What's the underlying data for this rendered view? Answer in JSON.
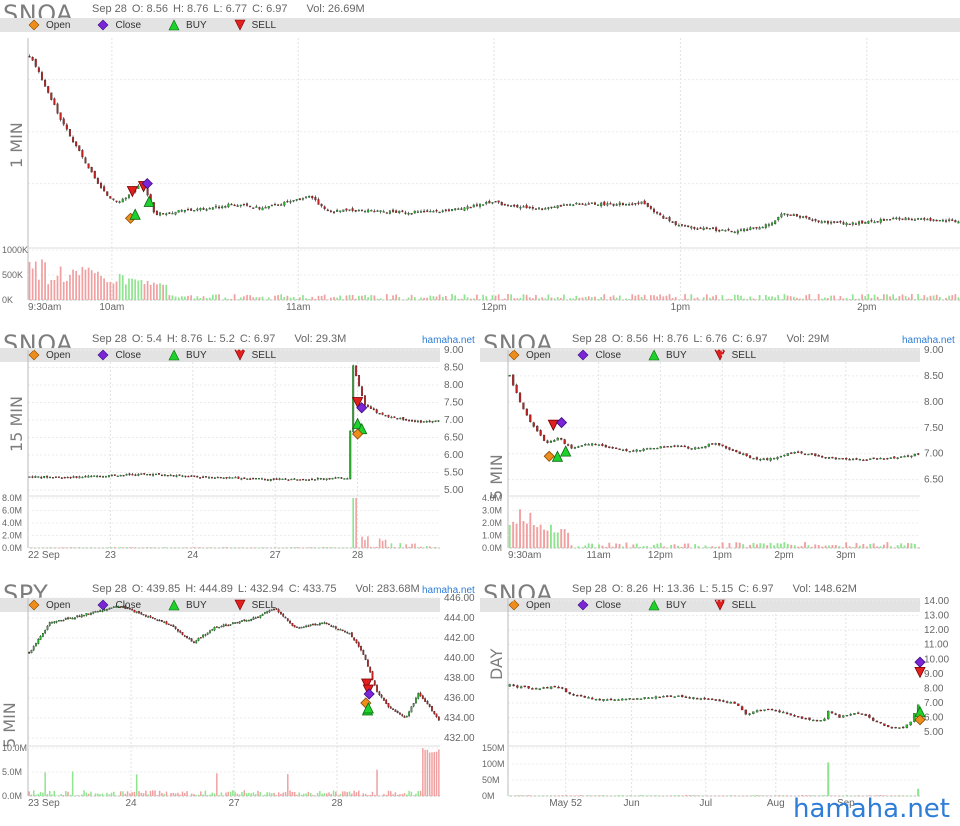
{
  "legend": {
    "open": "Open",
    "close": "Close",
    "buy": "BUY",
    "sell": "SELL",
    "colors": {
      "open": "#ef8d1c",
      "close": "#7a26d6",
      "buy": "#1fd12c",
      "sell": "#e01f1f",
      "up": "#2db82d",
      "down": "#c42020",
      "vol_up": "#8fe58f",
      "vol_down": "#f0a0a0"
    }
  },
  "brand": "hamaha.net",
  "watermark": "hamaha.net",
  "chart_data": [
    {
      "type": "candlestick",
      "ticker": "SNOA",
      "interval": "1 MIN",
      "ohlc": {
        "date": "Sep 28",
        "o": "O: 8.56",
        "h": "H: 8.76",
        "l": "L: 6.77",
        "c": "C: 6.97",
        "vol": "Vol: 26.69M"
      },
      "x_ticks": [
        "9:30am",
        "10am",
        "11am",
        "12pm",
        "1pm",
        "2pm"
      ],
      "y_ticks": [],
      "vol_ticks": [
        "1000K",
        "500K",
        "0K"
      ],
      "price_range": [
        6.7,
        8.8
      ],
      "path": [
        [
          0,
          8.62
        ],
        [
          0.01,
          8.45
        ],
        [
          0.03,
          8.05
        ],
        [
          0.045,
          7.78
        ],
        [
          0.06,
          7.55
        ],
        [
          0.075,
          7.3
        ],
        [
          0.085,
          7.2
        ],
        [
          0.095,
          7.15
        ],
        [
          0.105,
          7.2
        ],
        [
          0.12,
          7.32
        ],
        [
          0.125,
          7.28
        ],
        [
          0.135,
          7.02
        ],
        [
          0.16,
          7.05
        ],
        [
          0.19,
          7.08
        ],
        [
          0.22,
          7.12
        ],
        [
          0.25,
          7.08
        ],
        [
          0.28,
          7.15
        ],
        [
          0.3,
          7.2
        ],
        [
          0.31,
          7.14
        ],
        [
          0.32,
          7.05
        ],
        [
          0.35,
          7.06
        ],
        [
          0.38,
          7.05
        ],
        [
          0.41,
          7.04
        ],
        [
          0.44,
          7.05
        ],
        [
          0.47,
          7.08
        ],
        [
          0.48,
          7.12
        ],
        [
          0.5,
          7.14
        ],
        [
          0.52,
          7.1
        ],
        [
          0.55,
          7.08
        ],
        [
          0.58,
          7.12
        ],
        [
          0.6,
          7.13
        ],
        [
          0.63,
          7.12
        ],
        [
          0.66,
          7.14
        ],
        [
          0.68,
          7.0
        ],
        [
          0.7,
          6.9
        ],
        [
          0.72,
          6.88
        ],
        [
          0.74,
          6.86
        ],
        [
          0.76,
          6.85
        ],
        [
          0.78,
          6.88
        ],
        [
          0.8,
          6.93
        ],
        [
          0.81,
          7.02
        ],
        [
          0.83,
          7.0
        ],
        [
          0.85,
          6.95
        ],
        [
          0.88,
          6.92
        ],
        [
          0.91,
          6.95
        ],
        [
          0.94,
          6.98
        ],
        [
          1,
          6.95
        ]
      ],
      "markers": [
        {
          "type": "open",
          "x": 0.11,
          "y": 6.98
        },
        {
          "type": "buy",
          "x": 0.115,
          "y": 7.02
        },
        {
          "type": "sell",
          "x": 0.112,
          "y": 7.25
        },
        {
          "type": "sell",
          "x": 0.124,
          "y": 7.3
        },
        {
          "type": "close",
          "x": 0.128,
          "y": 7.33
        },
        {
          "type": "buy",
          "x": 0.13,
          "y": 7.15
        }
      ]
    },
    {
      "type": "candlestick",
      "ticker": "SNOA",
      "interval": "15 MIN",
      "ohlc": {
        "date": "Sep 28",
        "o": "O: 5.4",
        "h": "H: 8.76",
        "l": "L: 5.2",
        "c": "C: 6.97",
        "vol": "Vol: 29.3M"
      },
      "x_ticks": [
        "22 Sep",
        "23",
        "24",
        "27",
        "28"
      ],
      "y_ticks": [
        "9.00",
        "8.50",
        "8.00",
        "7.50",
        "7.00",
        "6.50",
        "6.00",
        "5.50",
        "5.00"
      ],
      "vol_ticks": [
        "8.0M",
        "6.0M",
        "4.0M",
        "2.0M",
        "0.0M"
      ],
      "price_range": [
        5.0,
        9.0
      ],
      "path": [
        [
          0,
          5.38
        ],
        [
          0.1,
          5.36
        ],
        [
          0.2,
          5.42
        ],
        [
          0.3,
          5.45
        ],
        [
          0.4,
          5.38
        ],
        [
          0.5,
          5.35
        ],
        [
          0.6,
          5.3
        ],
        [
          0.7,
          5.32
        ],
        [
          0.78,
          5.35
        ],
        [
          0.79,
          8.6
        ],
        [
          0.82,
          7.4
        ],
        [
          0.86,
          7.15
        ],
        [
          0.9,
          7.05
        ],
        [
          0.95,
          6.95
        ],
        [
          1,
          6.97
        ]
      ],
      "markers": [
        {
          "type": "sell",
          "x": 0.8,
          "y": 7.5
        },
        {
          "type": "close",
          "x": 0.81,
          "y": 7.35
        },
        {
          "type": "buy",
          "x": 0.8,
          "y": 6.9
        },
        {
          "type": "buy",
          "x": 0.81,
          "y": 6.75
        },
        {
          "type": "open",
          "x": 0.8,
          "y": 6.6
        }
      ]
    },
    {
      "type": "candlestick",
      "ticker": "SNOA",
      "interval": "5 MIN",
      "ohlc": {
        "date": "Sep 28",
        "o": "O: 8.56",
        "h": "H: 8.76",
        "l": "L: 6.76",
        "c": "C: 6.97",
        "vol": "Vol: 29M"
      },
      "x_ticks": [
        "9:30am",
        "11am",
        "12pm",
        "1pm",
        "2pm",
        "3pm"
      ],
      "y_ticks": [
        "9.00",
        "8.50",
        "8.00",
        "7.50",
        "7.00",
        "6.50"
      ],
      "vol_ticks": [
        "4.0M",
        "3.0M",
        "2.0M",
        "1.0M",
        "0.0M"
      ],
      "price_range": [
        6.3,
        9.0
      ],
      "path": [
        [
          0,
          8.5
        ],
        [
          0.03,
          7.9
        ],
        [
          0.06,
          7.5
        ],
        [
          0.09,
          7.2
        ],
        [
          0.12,
          7.3
        ],
        [
          0.15,
          7.1
        ],
        [
          0.2,
          7.2
        ],
        [
          0.25,
          7.1
        ],
        [
          0.3,
          7.05
        ],
        [
          0.35,
          7.1
        ],
        [
          0.4,
          7.15
        ],
        [
          0.45,
          7.1
        ],
        [
          0.5,
          7.2
        ],
        [
          0.55,
          7.05
        ],
        [
          0.6,
          6.9
        ],
        [
          0.65,
          6.9
        ],
        [
          0.7,
          7.05
        ],
        [
          0.75,
          6.95
        ],
        [
          0.8,
          6.9
        ],
        [
          0.85,
          6.88
        ],
        [
          0.9,
          6.9
        ],
        [
          0.95,
          6.92
        ],
        [
          1,
          7.0
        ]
      ],
      "markers": [
        {
          "type": "sell",
          "x": 0.11,
          "y": 7.55
        },
        {
          "type": "close",
          "x": 0.13,
          "y": 7.6
        },
        {
          "type": "open",
          "x": 0.1,
          "y": 6.95
        },
        {
          "type": "buy",
          "x": 0.12,
          "y": 6.95
        },
        {
          "type": "buy",
          "x": 0.14,
          "y": 7.05
        }
      ]
    },
    {
      "type": "candlestick",
      "ticker": "SPY",
      "interval": "5 MIN",
      "ohlc": {
        "date": "Sep 28",
        "o": "O: 439.85",
        "h": "H: 444.89",
        "l": "L: 432.94",
        "c": "C: 433.75",
        "vol": "Vol: 283.68M"
      },
      "x_ticks": [
        "23 Sep",
        "24",
        "27",
        "28"
      ],
      "y_ticks": [
        "446.00",
        "444.00",
        "442.00",
        "440.00",
        "438.00",
        "436.00",
        "434.00",
        "432.00"
      ],
      "vol_ticks": [
        "10.0M",
        "5.0M",
        "0.0M"
      ],
      "price_range": [
        432.0,
        446.0
      ],
      "path": [
        [
          0,
          440.5
        ],
        [
          0.05,
          443.5
        ],
        [
          0.15,
          444.5
        ],
        [
          0.22,
          445.2
        ],
        [
          0.3,
          444.0
        ],
        [
          0.35,
          443.2
        ],
        [
          0.4,
          441.5
        ],
        [
          0.45,
          443.0
        ],
        [
          0.5,
          443.5
        ],
        [
          0.55,
          444.0
        ],
        [
          0.6,
          445.0
        ],
        [
          0.65,
          443.0
        ],
        [
          0.72,
          443.5
        ],
        [
          0.78,
          442.5
        ],
        [
          0.8,
          441.5
        ],
        [
          0.82,
          440.0
        ],
        [
          0.85,
          436.5
        ],
        [
          0.88,
          435.0
        ],
        [
          0.92,
          434.0
        ],
        [
          0.95,
          436.5
        ],
        [
          0.98,
          435.0
        ],
        [
          1,
          433.8
        ]
      ],
      "markers": [
        {
          "type": "sell",
          "x": 0.822,
          "y": 437.4
        },
        {
          "type": "sell",
          "x": 0.826,
          "y": 436.8
        },
        {
          "type": "close",
          "x": 0.828,
          "y": 436.4
        },
        {
          "type": "open",
          "x": 0.82,
          "y": 435.5
        },
        {
          "type": "buy",
          "x": 0.824,
          "y": 434.8
        },
        {
          "type": "buy",
          "x": 0.826,
          "y": 435.0
        }
      ]
    },
    {
      "type": "candlestick",
      "ticker": "SNOA",
      "interval": "DAY",
      "ohlc": {
        "date": "Sep 28",
        "o": "O: 8.26",
        "h": "H: 13.36",
        "l": "L: 5.15",
        "c": "C: 6.97",
        "vol": "Vol: 148.62M"
      },
      "x_ticks": [
        "May 52",
        "Jun",
        "Jul",
        "Aug",
        "Sep"
      ],
      "y_ticks": [
        "14.00",
        "13.00",
        "12.00",
        "11.00",
        "10.00",
        "9.00",
        "8.00",
        "7.00",
        "6.00",
        "5.00"
      ],
      "vol_ticks": [
        "150M",
        "100M",
        "50M",
        "0M"
      ],
      "price_range": [
        4.6,
        14.2
      ],
      "path": [
        [
          0,
          8.2
        ],
        [
          0.05,
          8.0
        ],
        [
          0.12,
          8.1
        ],
        [
          0.15,
          7.6
        ],
        [
          0.22,
          7.2
        ],
        [
          0.3,
          7.3
        ],
        [
          0.4,
          7.5
        ],
        [
          0.5,
          7.2
        ],
        [
          0.55,
          7.0
        ],
        [
          0.56,
          6.8
        ],
        [
          0.58,
          6.2
        ],
        [
          0.62,
          6.6
        ],
        [
          0.65,
          6.5
        ],
        [
          0.7,
          6.1
        ],
        [
          0.74,
          5.8
        ],
        [
          0.77,
          5.9
        ],
        [
          0.78,
          6.5
        ],
        [
          0.81,
          6.0
        ],
        [
          0.85,
          6.4
        ],
        [
          0.88,
          6.0
        ],
        [
          0.92,
          5.4
        ],
        [
          0.96,
          5.3
        ],
        [
          0.98,
          5.6
        ],
        [
          1,
          6.9
        ]
      ],
      "markers": [
        {
          "type": "close",
          "x": 1,
          "y": 9.8
        },
        {
          "type": "sell",
          "x": 1,
          "y": 9.1
        },
        {
          "type": "buy",
          "x": 1,
          "y": 6.4
        },
        {
          "type": "open",
          "x": 1,
          "y": 5.85
        }
      ]
    }
  ]
}
